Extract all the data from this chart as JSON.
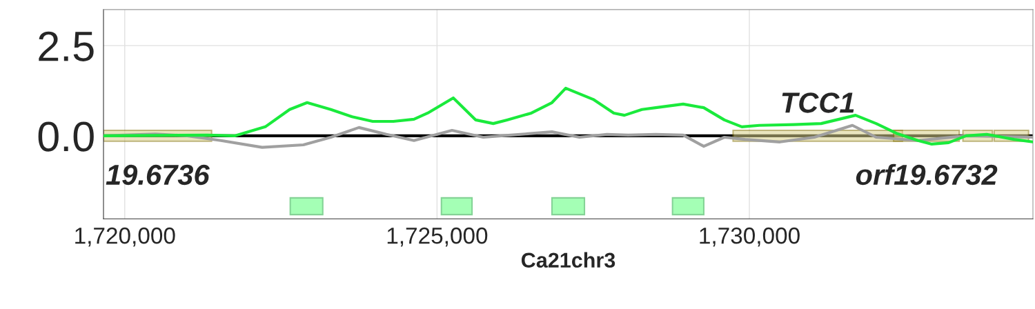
{
  "chart_data": {
    "type": "line",
    "xlabel": "Ca21chr3",
    "xlim": [
      1719660,
      1734540
    ],
    "ylim": [
      -2.3,
      3.5
    ],
    "xticks": [
      {
        "value": 1720000,
        "label": "1,720,000"
      },
      {
        "value": 1725000,
        "label": "1,725,000"
      },
      {
        "value": 1730000,
        "label": "1,730,000"
      }
    ],
    "yticks": [
      {
        "value": 0,
        "label": "0.0"
      },
      {
        "value": 2.5,
        "label": "2.5"
      }
    ],
    "grid": true,
    "line_style": "solid",
    "marker": "none",
    "series": [
      {
        "color": "#1aea3c",
        "x": [
          1719660,
          1721320,
          1721760,
          1722250,
          1722640,
          1722920,
          1723300,
          1723640,
          1723970,
          1724300,
          1724630,
          1724850,
          1725260,
          1725620,
          1725900,
          1726120,
          1726510,
          1726840,
          1727060,
          1727500,
          1727830,
          1728000,
          1728280,
          1728500,
          1728940,
          1729270,
          1729600,
          1729880,
          1730160,
          1730710,
          1731150,
          1731700,
          1732030,
          1732370,
          1732700,
          1732920,
          1733190,
          1733470,
          1733800,
          1734240,
          1734540
        ],
        "values": [
          0,
          0.02,
          0,
          0.25,
          0.73,
          0.92,
          0.73,
          0.53,
          0.4,
          0.4,
          0.46,
          0.63,
          1.05,
          0.44,
          0.34,
          0.44,
          0.63,
          0.92,
          1.32,
          1.01,
          0.63,
          0.57,
          0.73,
          0.78,
          0.88,
          0.78,
          0.44,
          0.25,
          0.29,
          0.31,
          0.34,
          0.57,
          0.34,
          0.06,
          -0.13,
          -0.23,
          -0.19,
          0,
          0.04,
          -0.1,
          -0.17
        ]
      },
      {
        "color": "#a0a0a0",
        "x": [
          1719660,
          1720490,
          1721000,
          1721540,
          1722200,
          1722860,
          1723300,
          1723750,
          1724190,
          1724630,
          1725240,
          1725740,
          1726180,
          1726840,
          1727280,
          1727720,
          1728060,
          1728500,
          1728940,
          1729270,
          1729600,
          1729930,
          1730490,
          1731040,
          1731650,
          1732030,
          1732700,
          1733470,
          1734540
        ],
        "values": [
          0,
          0.05,
          0,
          -0.13,
          -0.32,
          -0.25,
          -0.04,
          0.23,
          0.04,
          -0.13,
          0.15,
          -0.04,
          0.02,
          0.11,
          -0.04,
          0.04,
          0.02,
          0.04,
          0.02,
          -0.29,
          -0.04,
          -0.1,
          -0.17,
          -0.04,
          0.29,
          -0.04,
          -0.13,
          0,
          -0.04
        ]
      }
    ],
    "ref_lines": [
      {
        "axis": "y",
        "value": 0,
        "color": "#000000"
      }
    ],
    "bands": [
      {
        "axis": "x",
        "from": 1719660,
        "to": 1721390,
        "label": "19.6736",
        "color": "#d8d08a"
      },
      {
        "axis": "x",
        "from": 1729740,
        "to": 1732450,
        "label": "TCC1",
        "color": "#d8d08a"
      },
      {
        "axis": "x",
        "from": 1732310,
        "to": 1733360,
        "label": "orf19.6732",
        "color": "#d8d08a"
      },
      {
        "axis": "x",
        "from": 1733420,
        "to": 1733890,
        "label": null,
        "color": "#d8d08a"
      },
      {
        "axis": "x",
        "from": 1733920,
        "to": 1734470,
        "label": null,
        "color": "#d8d08a"
      },
      {
        "axis": "x",
        "from": 1722650,
        "to": 1723170,
        "color": "#5aff78"
      },
      {
        "axis": "x",
        "from": 1725070,
        "to": 1725560,
        "color": "#5aff78"
      },
      {
        "axis": "x",
        "from": 1726840,
        "to": 1727360,
        "color": "#5aff78"
      },
      {
        "axis": "x",
        "from": 1728770,
        "to": 1729270,
        "color": "#5aff78"
      }
    ]
  }
}
